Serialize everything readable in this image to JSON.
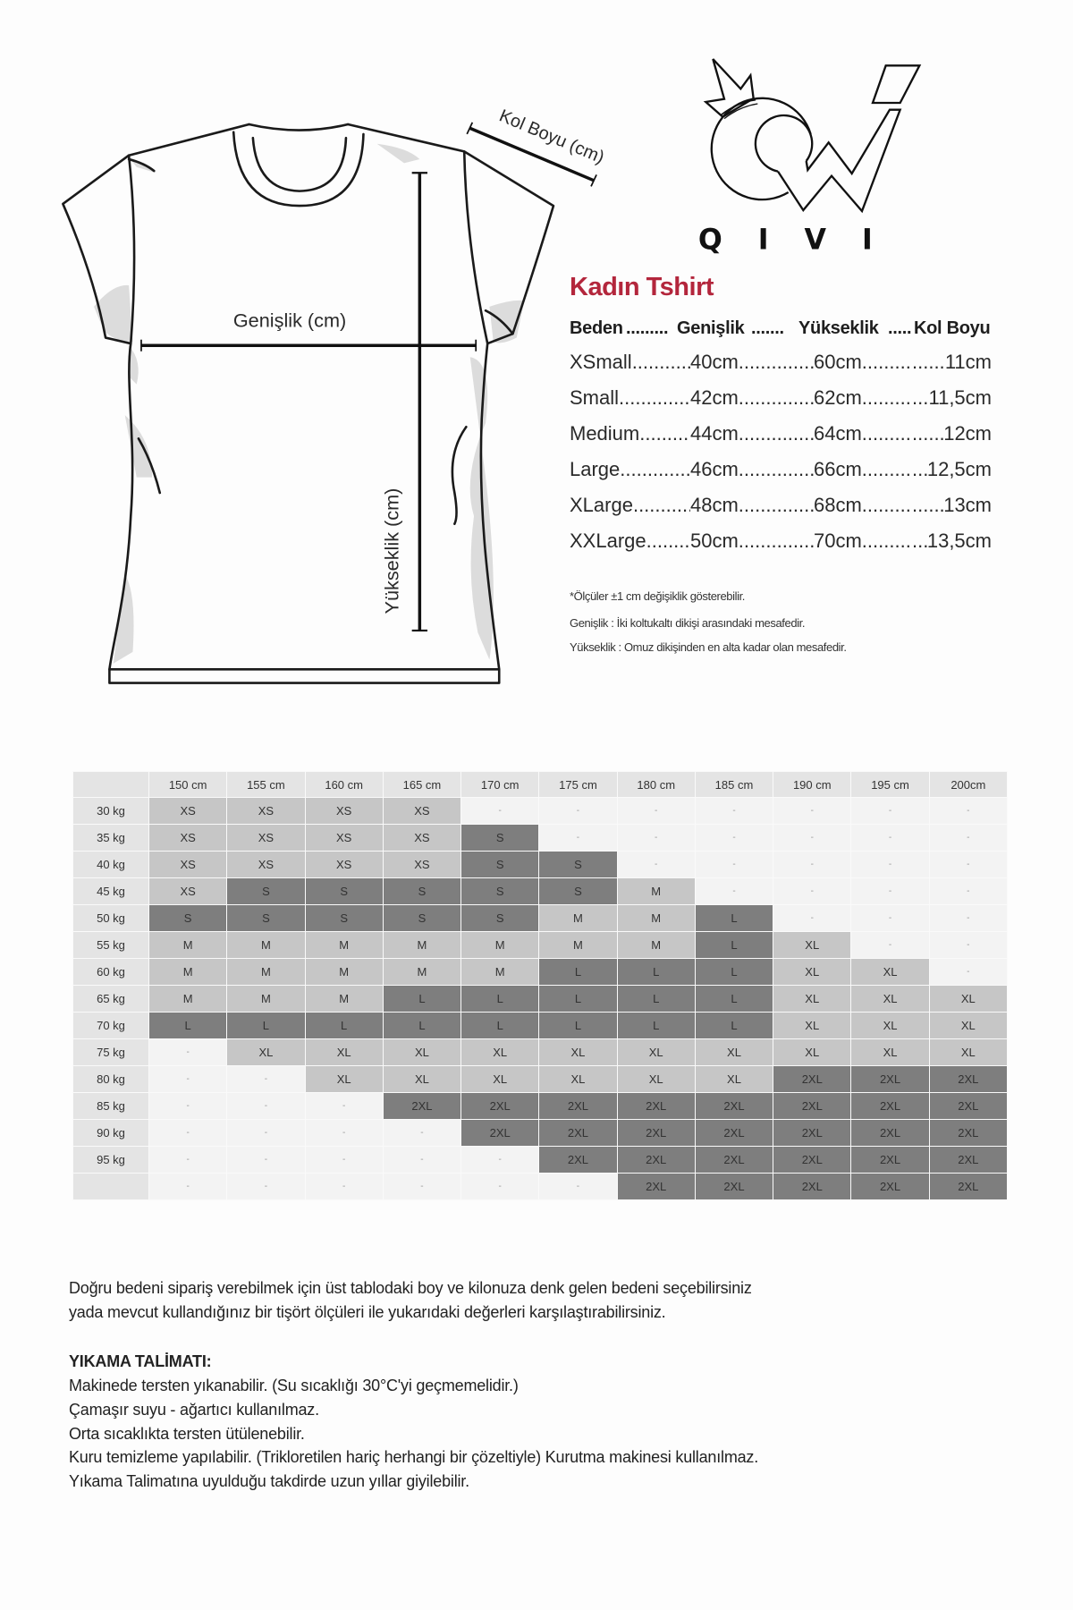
{
  "diagram": {
    "width_label": "Genişlik (cm)",
    "height_label": "Yükseklik (cm)",
    "sleeve_label": "Kol Boyu (cm)"
  },
  "logo": {
    "text": "QIVI"
  },
  "size_info": {
    "title": "Kadın Tshirt",
    "title_color": "#b3263c",
    "headers": [
      "Beden",
      "Genişlik",
      "Yükseklik",
      "Kol Boyu"
    ],
    "rows": [
      {
        "size": "XSmall",
        "width": "40cm",
        "height": "60cm",
        "sleeve": "11cm"
      },
      {
        "size": "Small",
        "width": "42cm",
        "height": "62cm",
        "sleeve": "11,5cm"
      },
      {
        "size": "Medium",
        "width": "44cm",
        "height": "64cm",
        "sleeve": "12cm"
      },
      {
        "size": "Large",
        "width": "46cm",
        "height": "66cm",
        "sleeve": "12,5cm"
      },
      {
        "size": "XLarge",
        "width": "48cm",
        "height": "68cm",
        "sleeve": "13cm"
      },
      {
        "size": "XXLarge",
        "width": "50cm",
        "height": "70cm",
        "sleeve": "13,5cm"
      }
    ],
    "notes": [
      "*Ölçüler ±1 cm değişiklik gösterebilir.",
      "Genişlik : İki koltukaltı dikişi arasındaki mesafedir.",
      "Yükseklik : Omuz dikişinden en alta kadar olan mesafedir."
    ]
  },
  "size_table": {
    "columns": [
      "150 cm",
      "155 cm",
      "160 cm",
      "165 cm",
      "170 cm",
      "175 cm",
      "180 cm",
      "185 cm",
      "190 cm",
      "195 cm",
      "200cm"
    ],
    "colors": {
      "XS": "#c6c6c6",
      "S": "#7e7e7e",
      "M": "#c6c6c6",
      "L": "#7e7e7e",
      "XL": "#c6c6c6",
      "2XL": "#7e7e7e",
      "-": "#f3f3f3"
    },
    "rows": [
      {
        "label": "30 kg",
        "cells": [
          "XS",
          "XS",
          "XS",
          "XS",
          "-",
          "-",
          "-",
          "-",
          "-",
          "-",
          "-"
        ]
      },
      {
        "label": "35 kg",
        "cells": [
          "XS",
          "XS",
          "XS",
          "XS",
          "S",
          "-",
          "-",
          "-",
          "-",
          "-",
          "-"
        ]
      },
      {
        "label": "40 kg",
        "cells": [
          "XS",
          "XS",
          "XS",
          "XS",
          "S",
          "S",
          "-",
          "-",
          "-",
          "-",
          "-"
        ]
      },
      {
        "label": "45 kg",
        "cells": [
          "XS",
          "S",
          "S",
          "S",
          "S",
          "S",
          "M",
          "-",
          "-",
          "-",
          "-"
        ]
      },
      {
        "label": "50 kg",
        "cells": [
          "S",
          "S",
          "S",
          "S",
          "S",
          "M",
          "M",
          "L",
          "-",
          "-",
          "-"
        ]
      },
      {
        "label": "55 kg",
        "cells": [
          "M",
          "M",
          "M",
          "M",
          "M",
          "M",
          "M",
          "L",
          "XL",
          "-",
          "-"
        ]
      },
      {
        "label": "60 kg",
        "cells": [
          "M",
          "M",
          "M",
          "M",
          "M",
          "L",
          "L",
          "L",
          "XL",
          "XL",
          "-"
        ]
      },
      {
        "label": "65 kg",
        "cells": [
          "M",
          "M",
          "M",
          "L",
          "L",
          "L",
          "L",
          "L",
          "XL",
          "XL",
          "XL"
        ]
      },
      {
        "label": "70 kg",
        "cells": [
          "L",
          "L",
          "L",
          "L",
          "L",
          "L",
          "L",
          "L",
          "XL",
          "XL",
          "XL"
        ]
      },
      {
        "label": "75 kg",
        "cells": [
          "-",
          "XL",
          "XL",
          "XL",
          "XL",
          "XL",
          "XL",
          "XL",
          "XL",
          "XL",
          "XL"
        ]
      },
      {
        "label": "80 kg",
        "cells": [
          "-",
          "-",
          "XL",
          "XL",
          "XL",
          "XL",
          "XL",
          "XL",
          "2XL",
          "2XL",
          "2XL"
        ]
      },
      {
        "label": "85 kg",
        "cells": [
          "-",
          "-",
          "-",
          "2XL",
          "2XL",
          "2XL",
          "2XL",
          "2XL",
          "2XL",
          "2XL",
          "2XL"
        ]
      },
      {
        "label": "90 kg",
        "cells": [
          "-",
          "-",
          "-",
          "-",
          "2XL",
          "2XL",
          "2XL",
          "2XL",
          "2XL",
          "2XL",
          "2XL"
        ]
      },
      {
        "label": "95 kg",
        "cells": [
          "-",
          "-",
          "-",
          "-",
          "-",
          "2XL",
          "2XL",
          "2XL",
          "2XL",
          "2XL",
          "2XL"
        ]
      },
      {
        "label": "",
        "cells": [
          "-",
          "-",
          "-",
          "-",
          "-",
          "-",
          "2XL",
          "2XL",
          "2XL",
          "2XL",
          "2XL"
        ]
      }
    ]
  },
  "guidance": [
    "Doğru bedeni sipariş verebilmek için üst tablodaki  boy ve kilonuza denk gelen bedeni seçebilirsiniz",
    "yada mevcut kullandığınız bir tişört ölçüleri ile yukarıdaki değerleri karşılaştırabilirsiniz."
  ],
  "washing": {
    "title": "YIKAMA TALİMATI:",
    "lines": [
      "Makinede tersten yıkanabilir. (Su sıcaklığı 30°C'yi geçmemelidir.)",
      "Çamaşır suyu - ağartıcı kullanılmaz.",
      "Orta sıcaklıkta tersten ütülenebilir.",
      "Kuru temizleme yapılabilir. (Trikloretilen hariç herhangi bir çözeltiyle) Kurutma makinesi kullanılmaz.",
      "Yıkama Talimatına uyulduğu takdirde uzun yıllar giyilebilir."
    ]
  }
}
